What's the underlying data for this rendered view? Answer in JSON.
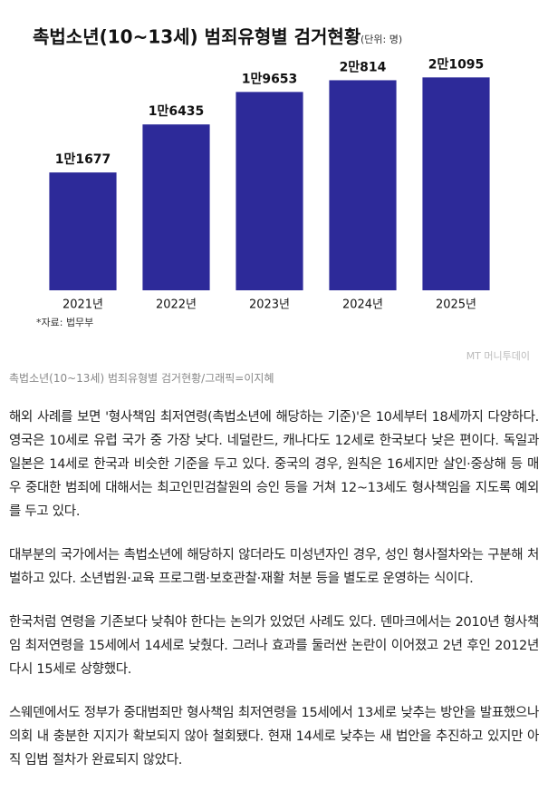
{
  "chart_data": {
    "type": "bar",
    "title": "촉법소년(10~13세) 범죄유형별 검거현황",
    "subtitle": "(단위: 명)",
    "categories": [
      "2021년",
      "2022년",
      "2023년",
      "2024년",
      "2025년"
    ],
    "values": [
      11677,
      16435,
      19653,
      20814,
      21095
    ],
    "value_labels": [
      "1만1677",
      "1만6435",
      "1만9653",
      "2만814",
      "2만1095"
    ],
    "color": "#2d2a99",
    "ylim": [
      0,
      24000
    ],
    "source": "*자료: 법무부",
    "watermark": "MT 머니투데이"
  },
  "caption": "촉법소년(10~13세) 범죄유형별 검거현황/그래픽=이지혜",
  "paragraphs": [
    "해외 사례를 보면 '형사책임 최저연령(촉법소년에 해당하는 기준)'은 10세부터 18세까지 다양하다. 영국은 10세로 유럽 국가 중 가장 낮다. 네덜란드, 캐나다도 12세로 한국보다 낮은 편이다. 독일과 일본은 14세로 한국과 비슷한 기준을 두고 있다. 중국의 경우, 원칙은 16세지만 살인·중상해 등 매우 중대한 범죄에 대해서는 최고인민검찰원의 승인 등을 거쳐 12~13세도 형사책임을 지도록 예외를 두고 있다.",
    "대부분의 국가에서는 촉법소년에 해당하지 않더라도 미성년자인 경우, 성인 형사절차와는 구분해 처벌하고 있다. 소년법원·교육 프로그램·보호관찰·재활 처분 등을 별도로 운영하는 식이다.",
    "한국처럼 연령을 기존보다 낮춰야 한다는 논의가 있었던 사례도 있다. 덴마크에서는 2010년 형사책임 최저연령을 15세에서 14세로 낮췄다. 그러나 효과를 둘러싼 논란이 이어졌고 2년 후인 2012년 다시 15세로 상향했다.",
    "스웨덴에서도 정부가 중대범죄만 형사책임 최저연령을 15세에서 13세로 낮추는 방안을 발표했으나 의회 내 충분한 지지가 확보되지 않아 철회됐다. 현재 14세로 낮추는 새 법안을 추진하고 있지만 아직 입법 절차가 완료되지 않았다."
  ]
}
